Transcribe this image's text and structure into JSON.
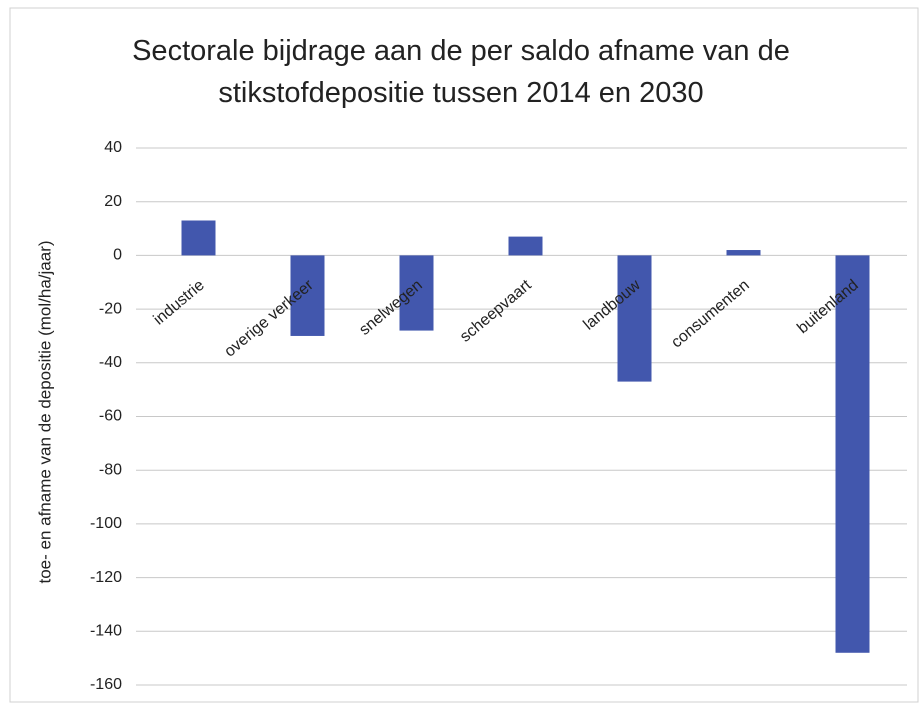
{
  "chart_data": {
    "type": "bar",
    "title": "Sectorale bijdrage aan de per saldo afname van de stikstofdepositie tussen 2014 en 2030",
    "y_label": "toe- en afname van de depositie (mol/ha/jaar)",
    "categories": [
      "industrie",
      "overige verkeer",
      "snelwegen",
      "scheepvaart",
      "landbouw",
      "consumenten",
      "buitenland"
    ],
    "values": [
      13,
      -30,
      -28,
      7,
      -47,
      2,
      -148
    ],
    "color": "#4257ad",
    "ylim": [
      -160,
      40
    ],
    "yticks": [
      40,
      20,
      0,
      -20,
      -40,
      -60,
      -80,
      -100,
      -120,
      -140,
      -160
    ],
    "grid": true
  }
}
